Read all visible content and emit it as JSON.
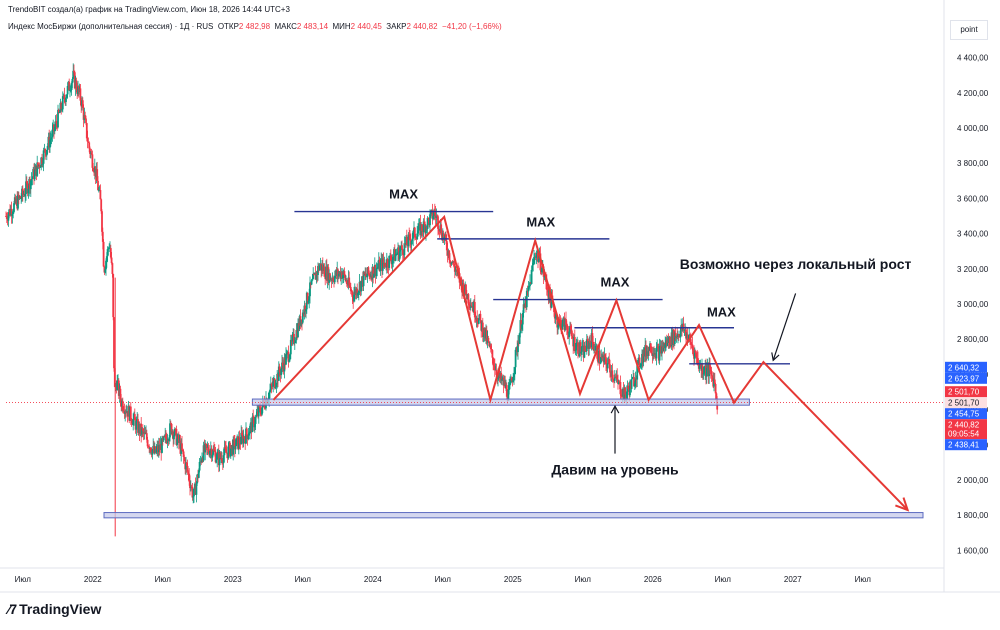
{
  "header": {
    "credit": "TrendoBIT создал(а) график на TradingView.com, Июн 18, 2026 14:44 UTC+3",
    "instrument": "Индекс МосБиржи (дополнительная сессия) · 1Д · RUS",
    "ohlc": [
      {
        "key": "ОТКР",
        "value": "2 482,98"
      },
      {
        "key": "МАКС",
        "value": "2 483,14"
      },
      {
        "key": "МИН",
        "value": "2 440,45"
      },
      {
        "key": "ЗАКР",
        "value": "2 440,82"
      }
    ],
    "change": "−41,20 (−1,66%)",
    "unit": "point"
  },
  "footer": {
    "logo_text": "TradingView"
  },
  "colors": {
    "up": "#089981",
    "down": "#f23645",
    "pattern": "#e53935",
    "max_line": "#283593",
    "zone_fill": "#c5cae9",
    "zone_stroke": "#5c6bc0"
  },
  "chart_data": {
    "type": "candlestick",
    "y_axis": {
      "min": 1500,
      "max": 4500,
      "ticks": [
        1600,
        1800,
        2000,
        2200,
        2400,
        2600,
        2800,
        3000,
        3200,
        3400,
        3600,
        3800,
        4000,
        4200,
        4400
      ],
      "tick_labels": [
        "1 600,00",
        "1 800,00",
        "2 000,00",
        "2 200,00",
        "2 400,00",
        "2 600,00",
        "2 800,00",
        "3 000,00",
        "3 200,00",
        "3 400,00",
        "3 600,00",
        "3 800,00",
        "4 000,00",
        "4 200,00",
        "4 400,00"
      ]
    },
    "x_axis": {
      "min": 2021.38,
      "max": 2028.08,
      "ticks": [
        {
          "t": 2021.5,
          "label": "Июл"
        },
        {
          "t": 2022.0,
          "label": "2022"
        },
        {
          "t": 2022.5,
          "label": "Июл"
        },
        {
          "t": 2023.0,
          "label": "2023"
        },
        {
          "t": 2023.5,
          "label": "Июл"
        },
        {
          "t": 2024.0,
          "label": "2024"
        },
        {
          "t": 2024.5,
          "label": "Июл"
        },
        {
          "t": 2025.0,
          "label": "2025"
        },
        {
          "t": 2025.5,
          "label": "Июл"
        },
        {
          "t": 2026.0,
          "label": "2026"
        },
        {
          "t": 2026.5,
          "label": "Июл"
        },
        {
          "t": 2027.0,
          "label": "2027"
        },
        {
          "t": 2027.5,
          "label": "Июл"
        }
      ]
    },
    "price_path": [
      [
        2021.38,
        3500
      ],
      [
        2021.5,
        3620
      ],
      [
        2021.62,
        3800
      ],
      [
        2021.72,
        3980
      ],
      [
        2021.8,
        4180
      ],
      [
        2021.86,
        4290
      ],
      [
        2021.92,
        4150
      ],
      [
        2021.97,
        3900
      ],
      [
        2022.02,
        3750
      ],
      [
        2022.06,
        3550
      ],
      [
        2022.08,
        3200
      ],
      [
        2022.12,
        3350
      ],
      [
        2022.14,
        3150
      ],
      [
        2022.155,
        2500
      ],
      [
        2022.17,
        2560
      ],
      [
        2022.2,
        2450
      ],
      [
        2022.26,
        2380
      ],
      [
        2022.32,
        2300
      ],
      [
        2022.38,
        2240
      ],
      [
        2022.44,
        2150
      ],
      [
        2022.5,
        2200
      ],
      [
        2022.56,
        2300
      ],
      [
        2022.62,
        2200
      ],
      [
        2022.68,
        2040
      ],
      [
        2022.72,
        1900
      ],
      [
        2022.78,
        2150
      ],
      [
        2022.84,
        2180
      ],
      [
        2022.9,
        2120
      ],
      [
        2022.96,
        2160
      ],
      [
        2023.02,
        2200
      ],
      [
        2023.1,
        2260
      ],
      [
        2023.2,
        2400
      ],
      [
        2023.3,
        2560
      ],
      [
        2023.4,
        2720
      ],
      [
        2023.48,
        2900
      ],
      [
        2023.56,
        3100
      ],
      [
        2023.62,
        3220
      ],
      [
        2023.7,
        3150
      ],
      [
        2023.78,
        3180
      ],
      [
        2023.86,
        3050
      ],
      [
        2023.94,
        3150
      ],
      [
        2024.02,
        3200
      ],
      [
        2024.12,
        3250
      ],
      [
        2024.22,
        3320
      ],
      [
        2024.3,
        3400
      ],
      [
        2024.38,
        3450
      ],
      [
        2024.44,
        3520
      ],
      [
        2024.48,
        3440
      ],
      [
        2024.56,
        3250
      ],
      [
        2024.64,
        3100
      ],
      [
        2024.72,
        2980
      ],
      [
        2024.8,
        2830
      ],
      [
        2024.86,
        2680
      ],
      [
        2024.9,
        2580
      ],
      [
        2024.94,
        2540
      ],
      [
        2024.97,
        2480
      ],
      [
        2025.0,
        2600
      ],
      [
        2025.06,
        2900
      ],
      [
        2025.12,
        3100
      ],
      [
        2025.16,
        3300
      ],
      [
        2025.2,
        3230
      ],
      [
        2025.26,
        3050
      ],
      [
        2025.32,
        2900
      ],
      [
        2025.38,
        2880
      ],
      [
        2025.44,
        2780
      ],
      [
        2025.5,
        2720
      ],
      [
        2025.56,
        2800
      ],
      [
        2025.62,
        2690
      ],
      [
        2025.68,
        2660
      ],
      [
        2025.74,
        2560
      ],
      [
        2025.8,
        2480
      ],
      [
        2025.86,
        2560
      ],
      [
        2025.92,
        2700
      ],
      [
        2025.98,
        2760
      ],
      [
        2026.04,
        2720
      ],
      [
        2026.1,
        2780
      ],
      [
        2026.16,
        2820
      ],
      [
        2026.22,
        2860
      ],
      [
        2026.28,
        2760
      ],
      [
        2026.34,
        2640
      ],
      [
        2026.4,
        2620
      ],
      [
        2026.44,
        2560
      ],
      [
        2026.46,
        2441
      ]
    ],
    "price_labels": [
      {
        "value": 2640.32,
        "label": "2 640,32",
        "color": "#2962ff"
      },
      {
        "value": 2623.97,
        "label": "2 623,97",
        "color": "#2962ff"
      },
      {
        "value": 2501.7,
        "label": "2 501,70",
        "color": "#f23645"
      },
      {
        "value": 2501.7,
        "label": "2 501,70",
        "color": "#fcdfe1"
      },
      {
        "value": 2454.75,
        "label": "2 454,75",
        "color": "#2962ff"
      },
      {
        "value": 2440.82,
        "label": "2 440,82",
        "color": "#f23645",
        "sub": "09:05:54"
      },
      {
        "value": 2438.41,
        "label": "2 438,41",
        "color": "#2962ff"
      }
    ],
    "last_price": 2440.82,
    "support_zone": {
      "t0": 2023.14,
      "t1": 2026.69,
      "y0": 2425,
      "y1": 2460
    },
    "lower_zone": {
      "t0": 2022.08,
      "t1": 2027.93,
      "y0": 1785,
      "y1": 1815
    },
    "max_lines": [
      {
        "t0": 2023.44,
        "t1": 2024.86,
        "value": 3525
      },
      {
        "t0": 2024.46,
        "t1": 2025.69,
        "value": 3370
      },
      {
        "t0": 2024.86,
        "t1": 2026.07,
        "value": 3025
      },
      {
        "t0": 2025.44,
        "t1": 2026.58,
        "value": 2865
      },
      {
        "t0": 2026.26,
        "t1": 2026.98,
        "value": 2660
      }
    ],
    "pattern_path": [
      [
        2023.29,
        2455
      ],
      [
        2024.51,
        3495
      ],
      [
        2024.84,
        2455
      ],
      [
        2025.16,
        3360
      ],
      [
        2025.48,
        2490
      ],
      [
        2025.74,
        3020
      ],
      [
        2025.97,
        2455
      ],
      [
        2026.33,
        2880
      ],
      [
        2026.58,
        2440
      ],
      [
        2026.79,
        2670
      ],
      [
        2027.82,
        1830
      ]
    ],
    "annotations": [
      {
        "text": "MAX",
        "t": 2024.22,
        "value": 3600
      },
      {
        "text": "MAX",
        "t": 2025.2,
        "value": 3440
      },
      {
        "text": "MAX",
        "t": 2025.73,
        "value": 3100
      },
      {
        "text": "MAX",
        "t": 2026.49,
        "value": 2930
      },
      {
        "text": "Возможно через локальный рост",
        "t": 2027.02,
        "value": 3200
      },
      {
        "text": "Давим на уровень",
        "t": 2025.73,
        "value": 2030
      }
    ]
  }
}
